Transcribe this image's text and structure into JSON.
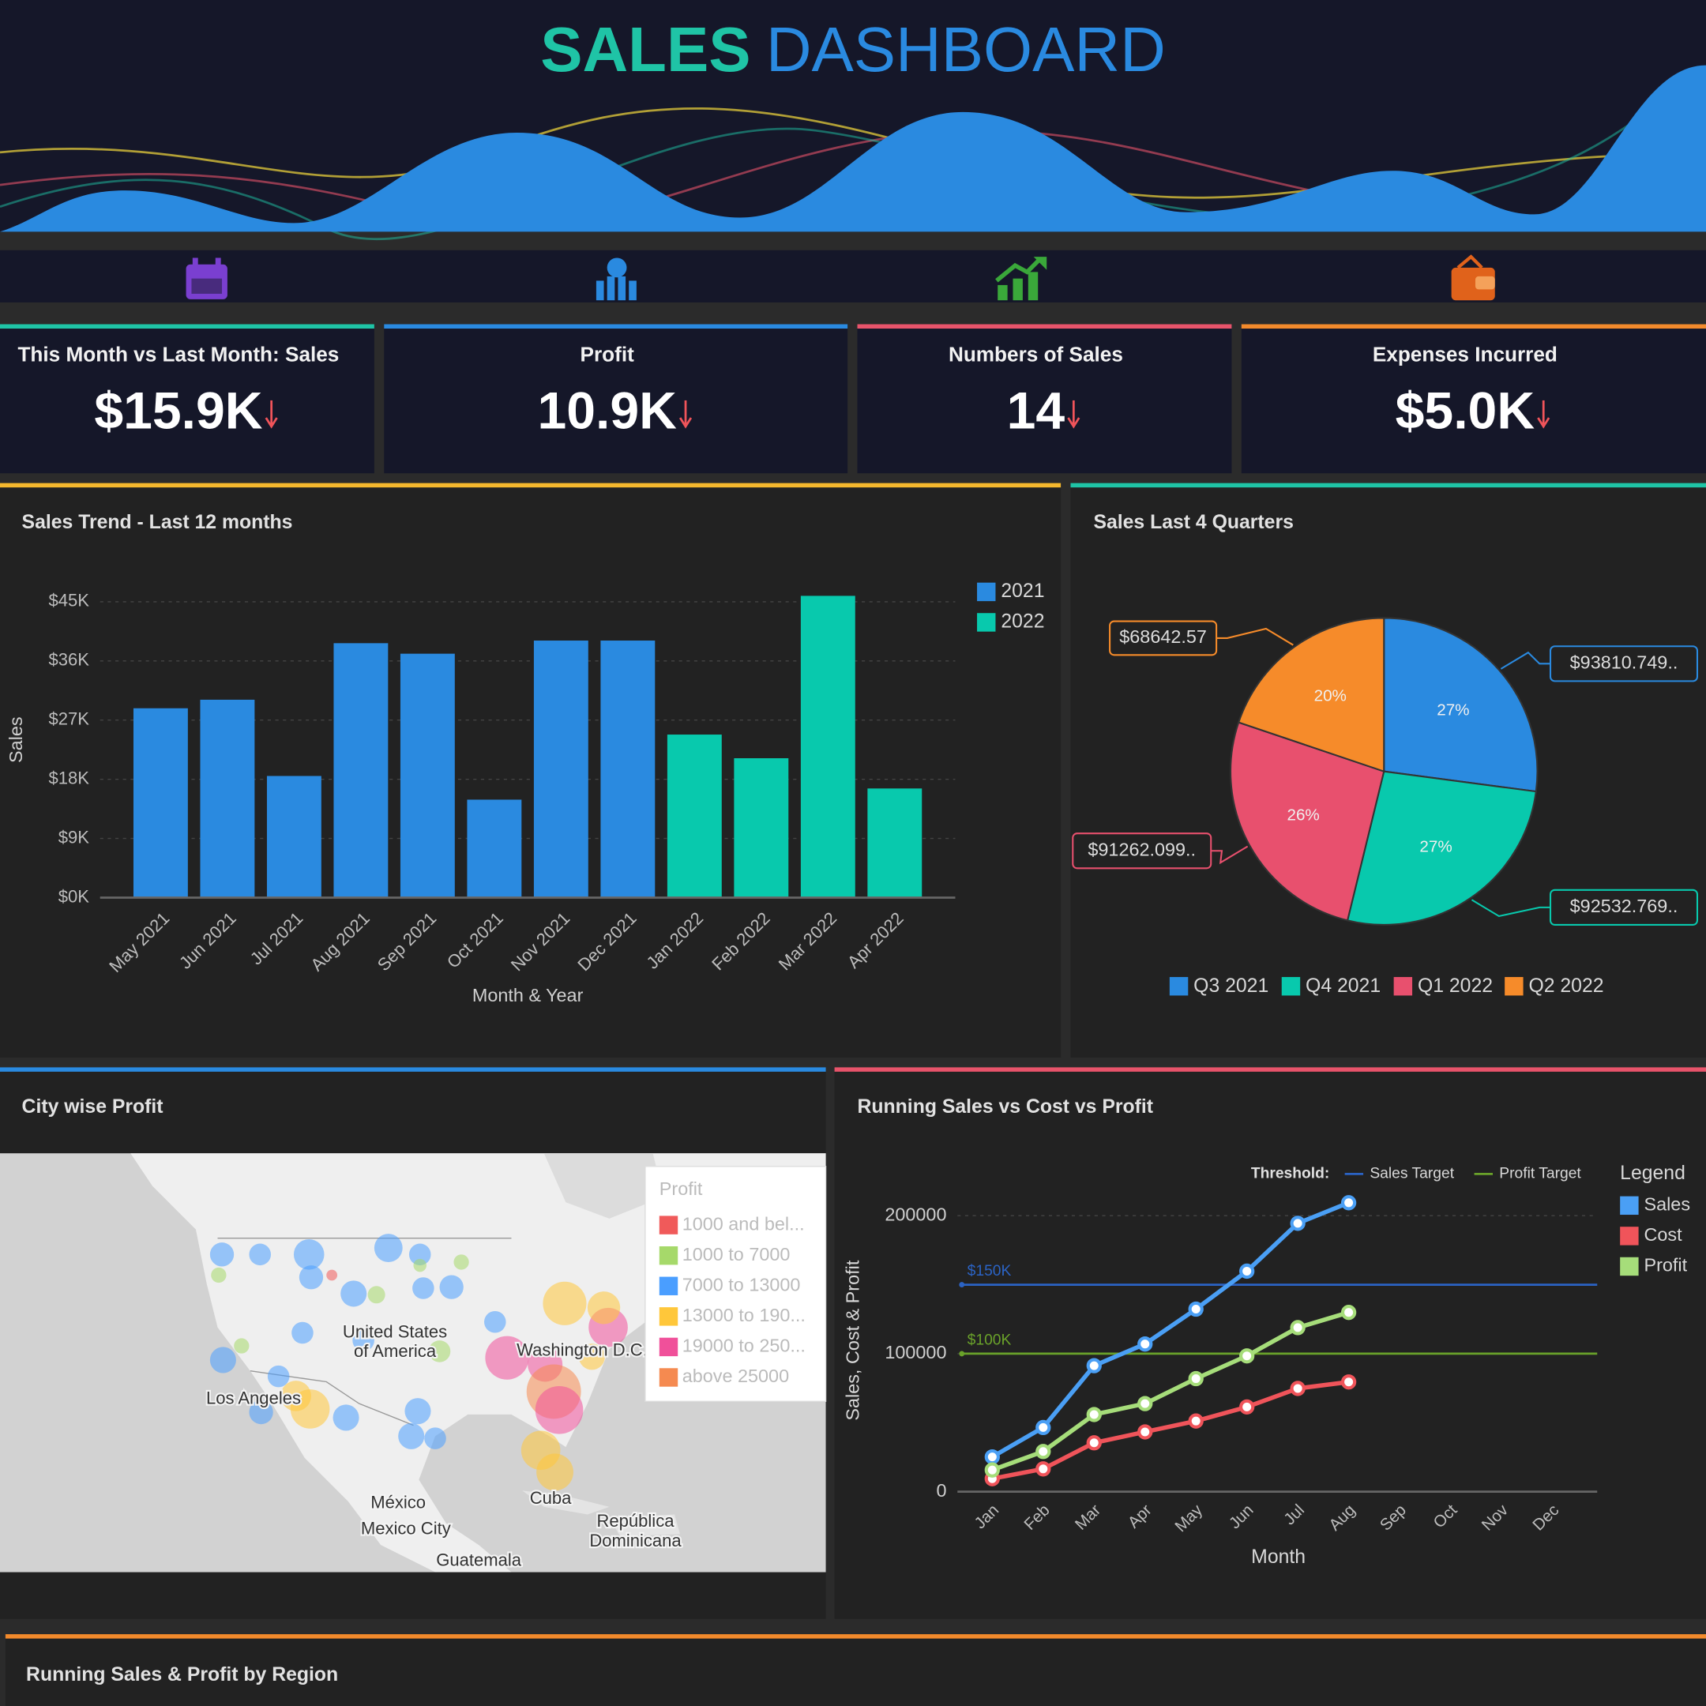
{
  "header": {
    "title_part_1": "SALES",
    "title_part_2": "DASHBOARD"
  },
  "kpis": [
    {
      "title": "This Month vs Last Month: Sales",
      "value": "$15.9K",
      "color": "#1fc4a6"
    },
    {
      "title": "Profit",
      "value": "10.9K",
      "color": "#2a8ae0"
    },
    {
      "title": "Numbers of Sales",
      "value": "14",
      "color": "#e8546b"
    },
    {
      "title": "Expenses Incurred",
      "value": "$5.0K",
      "color": "#f28a2c"
    }
  ],
  "chart_data": [
    {
      "type": "bar",
      "title": "Sales Trend - Last 12 months",
      "accent": "#f5b82e",
      "x_label": "Month & Year",
      "y_label": "Sales",
      "categories": [
        "May 2021",
        "Jun 2021",
        "Jul 2021",
        "Aug 2021",
        "Sep 2021",
        "Oct 2021",
        "Nov 2021",
        "Dec 2021",
        "Jan 2022",
        "Feb 2022",
        "Mar 2022",
        "Apr 2022"
      ],
      "series": [
        {
          "name": "2021",
          "color": "#2a8ae0",
          "values": [
            28800,
            30100,
            18500,
            38700,
            37100,
            14900,
            39100,
            39100,
            null,
            null,
            null,
            null
          ]
        },
        {
          "name": "2022",
          "color": "#08c9ad",
          "values": [
            null,
            null,
            null,
            null,
            null,
            null,
            null,
            null,
            24800,
            21200,
            45900,
            16600
          ]
        }
      ],
      "ylim": [
        0,
        47000
      ],
      "yticks": [
        {
          "value": 0,
          "label": "$0K"
        },
        {
          "value": 9000,
          "label": "$9K"
        },
        {
          "value": 18000,
          "label": "$18K"
        },
        {
          "value": 27000,
          "label": "$27K"
        },
        {
          "value": 36000,
          "label": "$36K"
        },
        {
          "value": 45000,
          "label": "$45K"
        }
      ],
      "grid": true,
      "legend": "top-right"
    },
    {
      "type": "pie",
      "title": "Sales Last 4 Quarters",
      "accent": "#1fc4a6",
      "categories": [
        "Q3 2021",
        "Q4 2021",
        "Q1 2022",
        "Q2 2022"
      ],
      "values": [
        93810.749,
        92532.769,
        91262.099,
        68642.57
      ],
      "value_labels": [
        "$93810.749..",
        "$92532.769..",
        "$91262.099..",
        "$68642.57"
      ],
      "percent_labels": [
        "27%",
        "27%",
        "26%",
        "20%"
      ],
      "colors": [
        "#2a8ae0",
        "#08c9ad",
        "#e8506e",
        "#f68b2a"
      ],
      "legend": "bottom"
    },
    {
      "type": "map",
      "title": "City wise Profit",
      "accent": "#2a8ae0",
      "legend_title": "Profit",
      "legend_items": [
        {
          "name": "1000 and bel...",
          "color": "#f05a5a"
        },
        {
          "name": "1000 to 7000",
          "color": "#a6d96a"
        },
        {
          "name": "7000 to 13000",
          "color": "#4a9eff"
        },
        {
          "name": "13000 to 190...",
          "color": "#ffc73a"
        },
        {
          "name": "19000 to 250...",
          "color": "#f0509a"
        },
        {
          "name": "above 25000",
          "color": "#f58a50"
        }
      ],
      "place_labels": [
        "United States",
        "of America",
        "Los Angeles",
        "Washington D.C.",
        "México",
        "Mexico City",
        "Cuba",
        "República",
        "Dominicana",
        "Guatemala"
      ]
    },
    {
      "type": "line",
      "title": "Running Sales vs Cost vs Profit",
      "accent": "#e8546b",
      "x_label": "Month",
      "y_label": "Sales, Cost & Profit",
      "categories": [
        "Jan",
        "Feb",
        "Mar",
        "Apr",
        "May",
        "Jun",
        "Jul",
        "Aug",
        "Sep",
        "Oct",
        "Nov",
        "Dec"
      ],
      "series": [
        {
          "name": "Sales",
          "color": "#4a9ff5",
          "values": [
            25200,
            46500,
            91300,
            107000,
            132300,
            159800,
            194500,
            209400,
            null,
            null,
            null,
            null
          ]
        },
        {
          "name": "Cost",
          "color": "#f0545a",
          "values": [
            9400,
            16500,
            35400,
            43300,
            51200,
            61400,
            74800,
            79500,
            null,
            null,
            null,
            null
          ]
        },
        {
          "name": "Profit",
          "color": "#a6dd7a",
          "values": [
            15700,
            29100,
            55900,
            63800,
            81900,
            98400,
            118900,
            129900,
            null,
            null,
            null,
            null
          ]
        }
      ],
      "threshold_title": "Threshold:",
      "thresholds": [
        {
          "name": "Sales Target",
          "value": 150000,
          "label": "$150K",
          "color": "#2b63c4"
        },
        {
          "name": "Profit Target",
          "value": 100000,
          "label": "$100K",
          "color": "#6aa22a"
        }
      ],
      "legend_title": "Legend",
      "ylim": [
        0,
        220000
      ],
      "yticks": [
        0,
        100000,
        200000
      ],
      "grid": true,
      "legend": "right"
    }
  ],
  "footer_panel": {
    "title": "Running Sales & Profit by Region",
    "accent": "#f28a2c"
  }
}
